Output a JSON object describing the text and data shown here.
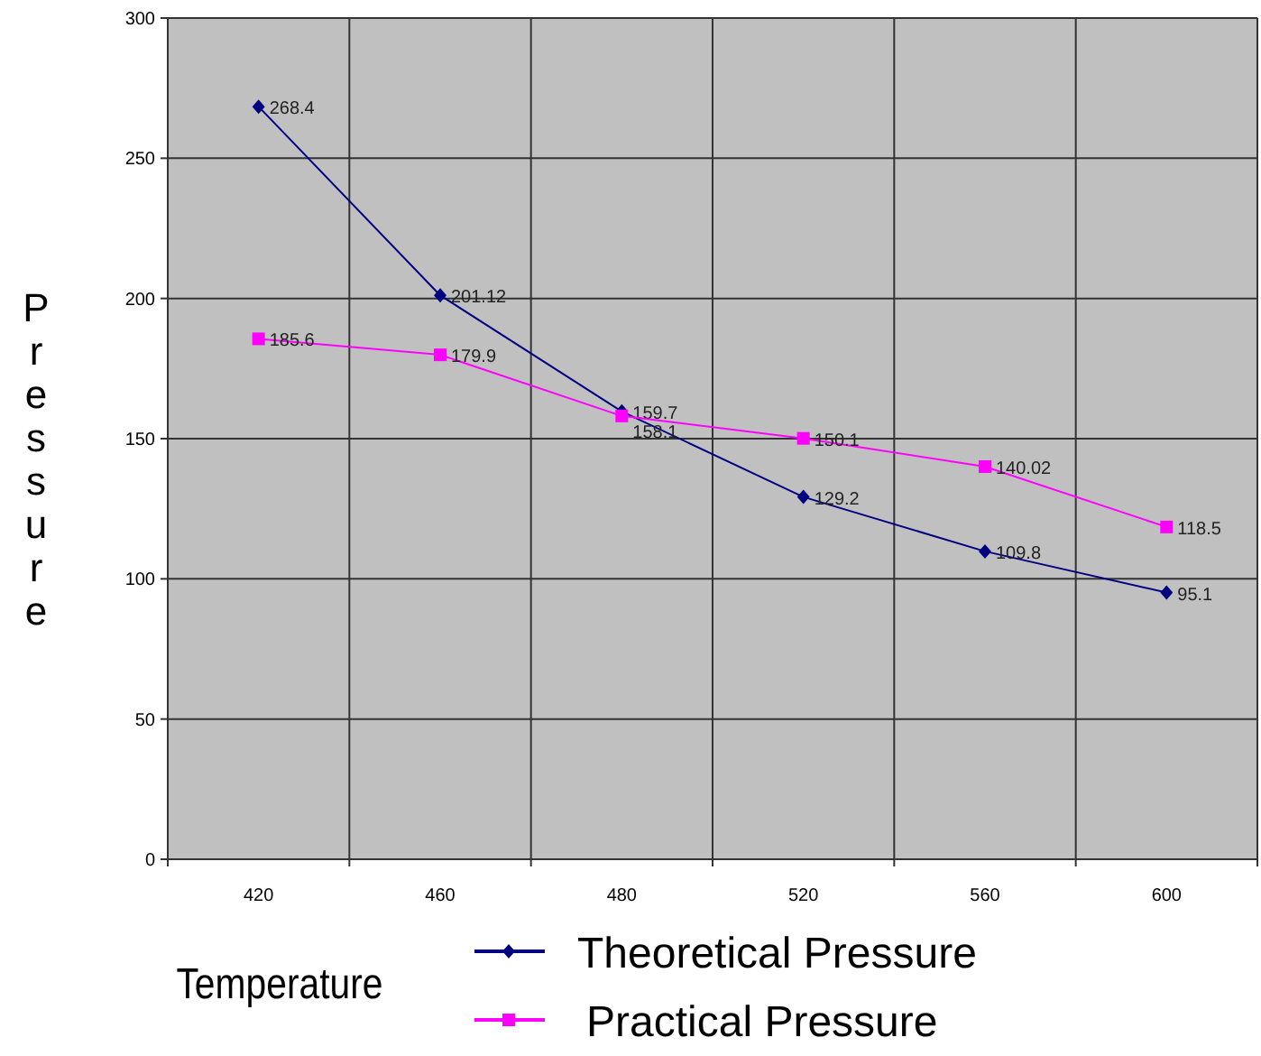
{
  "chart_data": {
    "type": "line",
    "xlabel": "Temperature",
    "ylabel": "Pressure",
    "categories": [
      "420",
      "460",
      "480",
      "520",
      "560",
      "600"
    ],
    "series": [
      {
        "name": "Theoretical Pressure",
        "color": "#000080",
        "marker": "diamond",
        "values": [
          268.4,
          201.12,
          159.7,
          129.2,
          109.8,
          95.1
        ]
      },
      {
        "name": "Practical Pressure",
        "color": "#ff00ff",
        "marker": "square",
        "values": [
          185.6,
          179.9,
          158.1,
          150.1,
          140.02,
          118.5
        ]
      }
    ],
    "ylim": [
      0,
      300
    ],
    "yticks": [
      0,
      50,
      100,
      150,
      200,
      250,
      300
    ],
    "grid": true,
    "legend": "bottom",
    "data_labels": true
  }
}
